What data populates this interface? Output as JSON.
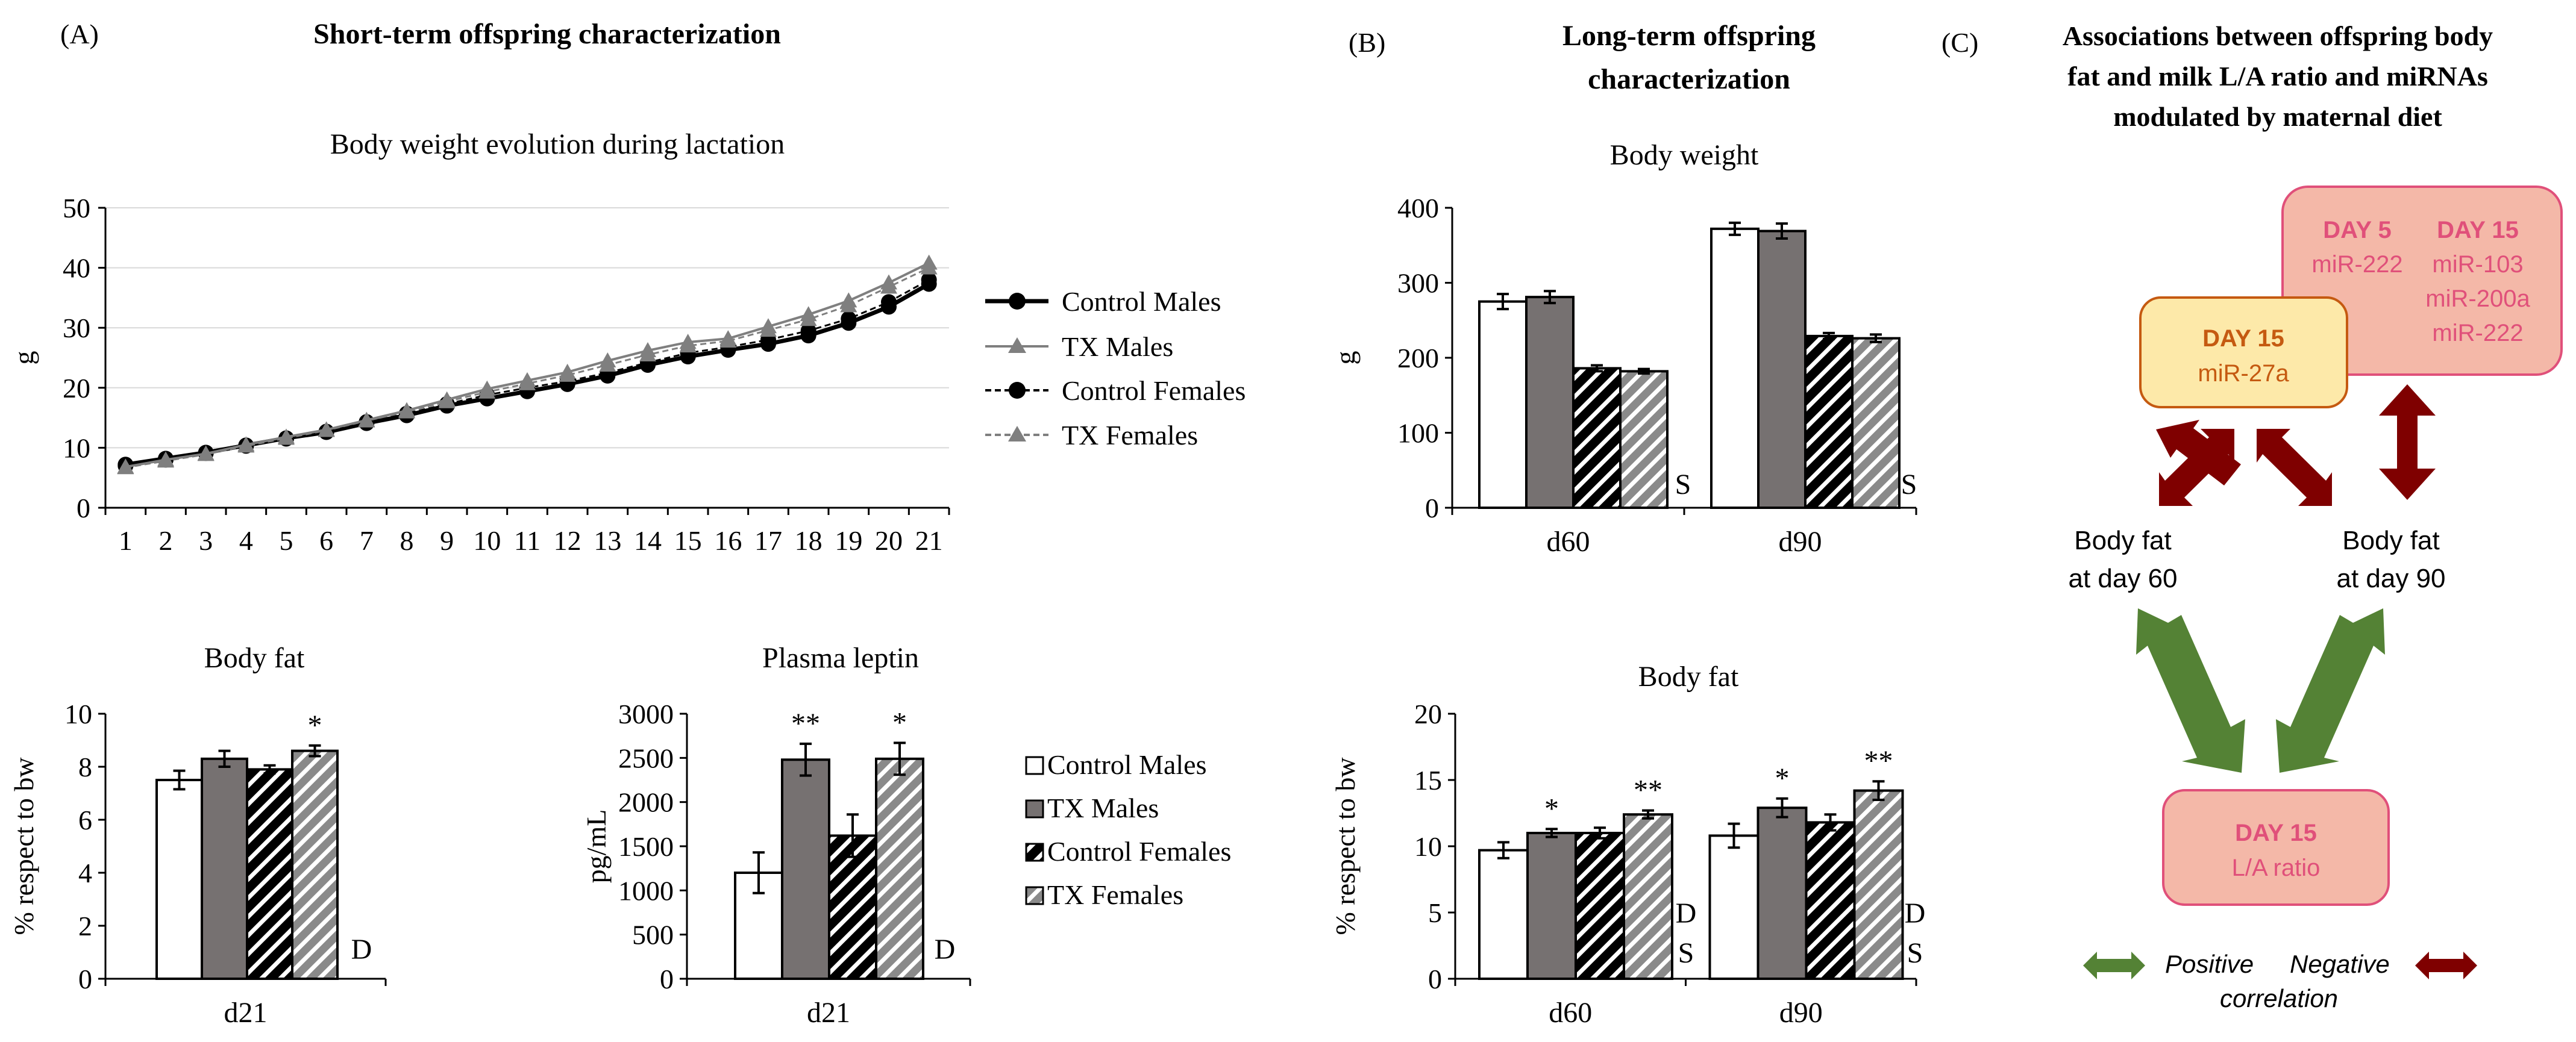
{
  "panels": {
    "A": {
      "label": "(A)",
      "title": "Short-term offspring characterization",
      "line_chart_title": "Body weight evolution during lactation",
      "body_fat_title": "Body fat",
      "leptin_title": "Plasma leptin",
      "diet_marker": "D"
    },
    "B": {
      "label": "(B)",
      "title_line1": "Long-term offspring",
      "title_line2": "characterization",
      "body_weight_title": "Body weight",
      "body_fat_title": "Body fat",
      "sex_marker": "S",
      "diet_marker": "D"
    },
    "C": {
      "label": "(C)",
      "title_line1": "Associations between offspring body",
      "title_line2": "fat and milk L/A ratio and miRNAs",
      "title_line3": "modulated by maternal diet",
      "box_day15_title": "DAY 15",
      "box_day15_mirna": "miR-27a",
      "box_day5_title": "DAY 5",
      "box_day5_mirna": "miR-222",
      "box_day15b_title": "DAY 15",
      "box_day15b_mirnas": [
        "miR-103",
        "miR-200a",
        "miR-222"
      ],
      "body_fat_60_line1": "Body fat",
      "body_fat_60_line2": "at day 60",
      "body_fat_90_line1": "Body fat",
      "body_fat_90_line2": "at day 90",
      "la_box_title": "DAY 15",
      "la_box_text": "L/A ratio",
      "legend_positive": "Positive",
      "legend_negative": "Negative",
      "legend_correlation": "correlation"
    }
  },
  "legend_lines": [
    "Control Males",
    "TX Males",
    "Control Females",
    "TX Females"
  ],
  "legend_bars": [
    "Control Males",
    "TX Males",
    "Control Females",
    "TX Females"
  ],
  "colors": {
    "grey_bar": "#767171",
    "grey_line": "#7f7f7f",
    "dark_red": "#7f0000",
    "green": "#548235",
    "yellow_box": "#fde9a9",
    "yellow_border": "#c55a11",
    "pink_box": "#f4b8a8",
    "pink_border": "#e0507a",
    "pink_text": "#e0507a",
    "orange_text": "#c55a11"
  },
  "chart_data": [
    {
      "id": "bw_lactation",
      "type": "line",
      "title": "Body weight evolution during lactation",
      "ylabel": "g",
      "xlabel": "",
      "ylim": [
        0,
        50
      ],
      "yticks": [
        0,
        10,
        20,
        30,
        40,
        50
      ],
      "x": [
        1,
        2,
        3,
        4,
        5,
        6,
        7,
        8,
        9,
        10,
        11,
        12,
        13,
        14,
        15,
        16,
        17,
        18,
        19,
        20,
        21
      ],
      "series": [
        {
          "name": "Control Males",
          "values": [
            7.2,
            8.2,
            9.2,
            10.4,
            11.6,
            12.6,
            14.1,
            15.4,
            17.0,
            18.2,
            19.4,
            20.6,
            22.0,
            23.8,
            25.2,
            26.3,
            27.3,
            28.7,
            30.8,
            33.5,
            37.3
          ]
        },
        {
          "name": "TX Males",
          "values": [
            6.8,
            8.0,
            9.0,
            10.5,
            11.8,
            13.0,
            14.6,
            16.2,
            18.0,
            19.8,
            21.2,
            22.6,
            24.5,
            26.2,
            27.6,
            28.2,
            30.2,
            32.2,
            34.5,
            37.5,
            40.8
          ]
        },
        {
          "name": "Control Females",
          "values": [
            7.0,
            8.0,
            9.1,
            10.3,
            11.5,
            12.7,
            14.3,
            15.7,
            17.3,
            18.8,
            20.0,
            21.1,
            22.5,
            24.2,
            25.8,
            26.8,
            28.0,
            29.5,
            31.5,
            34.3,
            38.0
          ]
        },
        {
          "name": "TX Females",
          "values": [
            6.7,
            7.8,
            8.9,
            10.3,
            11.6,
            12.9,
            14.5,
            16.0,
            17.7,
            19.3,
            20.7,
            22.1,
            23.8,
            25.5,
            27.0,
            27.8,
            29.6,
            31.4,
            33.7,
            36.8,
            40.0
          ]
        }
      ]
    },
    {
      "id": "body_fat_d21",
      "type": "bar",
      "title": "Body fat",
      "ylabel": "% respect to bw",
      "categories": [
        "d21"
      ],
      "ylim": [
        0,
        10
      ],
      "yticks": [
        0,
        2,
        4,
        6,
        8,
        10
      ],
      "series": [
        {
          "name": "Control Males",
          "values": [
            7.5
          ],
          "errors": [
            0.35
          ]
        },
        {
          "name": "TX Males",
          "values": [
            8.3
          ],
          "errors": [
            0.3
          ]
        },
        {
          "name": "Control Females",
          "values": [
            7.9
          ],
          "errors": [
            0.15
          ]
        },
        {
          "name": "TX Females",
          "values": [
            8.6
          ],
          "errors": [
            0.2
          ]
        }
      ],
      "significance": [
        {
          "series": "TX Females",
          "category": "d21",
          "label": "*"
        }
      ],
      "effect_labels": [
        "D"
      ]
    },
    {
      "id": "leptin_d21",
      "type": "bar",
      "title": "Plasma leptin",
      "ylabel": "pg/mL",
      "categories": [
        "d21"
      ],
      "ylim": [
        0,
        3000
      ],
      "yticks": [
        0,
        500,
        1000,
        1500,
        2000,
        2500,
        3000
      ],
      "series": [
        {
          "name": "Control Males",
          "values": [
            1200
          ],
          "errors": [
            230
          ]
        },
        {
          "name": "TX Males",
          "values": [
            2480
          ],
          "errors": [
            180
          ]
        },
        {
          "name": "Control Females",
          "values": [
            1620
          ],
          "errors": [
            240
          ]
        },
        {
          "name": "TX Females",
          "values": [
            2490
          ],
          "errors": [
            180
          ]
        }
      ],
      "significance": [
        {
          "series": "TX Males",
          "category": "d21",
          "label": "**"
        },
        {
          "series": "TX Females",
          "category": "d21",
          "label": "*"
        }
      ],
      "effect_labels": [
        "D"
      ]
    },
    {
      "id": "bw_long",
      "type": "bar",
      "title": "Body weight",
      "ylabel": "g",
      "categories": [
        "d60",
        "d90"
      ],
      "ylim": [
        0,
        400
      ],
      "yticks": [
        0,
        100,
        200,
        300,
        400
      ],
      "series": [
        {
          "name": "Control Males",
          "values": [
            275,
            372
          ],
          "errors": [
            10,
            8
          ]
        },
        {
          "name": "TX Males",
          "values": [
            281,
            369
          ],
          "errors": [
            8,
            10
          ]
        },
        {
          "name": "Control Females",
          "values": [
            186,
            229
          ],
          "errors": [
            4,
            4
          ]
        },
        {
          "name": "TX Females",
          "values": [
            182,
            226
          ],
          "errors": [
            3,
            5
          ]
        }
      ],
      "significance": [],
      "effect_labels": [
        "S"
      ]
    },
    {
      "id": "bf_long",
      "type": "bar",
      "title": "Body fat",
      "ylabel": "% respect to bw",
      "categories": [
        "d60",
        "d90"
      ],
      "ylim": [
        0,
        20
      ],
      "yticks": [
        0,
        5,
        10,
        15,
        20
      ],
      "series": [
        {
          "name": "Control Males",
          "values": [
            9.7,
            10.8
          ],
          "errors": [
            0.6,
            0.9
          ]
        },
        {
          "name": "TX Males",
          "values": [
            11.0,
            12.9
          ],
          "errors": [
            0.3,
            0.7
          ]
        },
        {
          "name": "Control Females",
          "values": [
            11.0,
            11.8
          ],
          "errors": [
            0.4,
            0.6
          ]
        },
        {
          "name": "TX Females",
          "values": [
            12.4,
            14.2
          ],
          "errors": [
            0.3,
            0.7
          ]
        }
      ],
      "significance": [
        {
          "series": "TX Males",
          "category": "d60",
          "label": "*"
        },
        {
          "series": "TX Females",
          "category": "d60",
          "label": "**"
        },
        {
          "series": "TX Males",
          "category": "d90",
          "label": "*"
        },
        {
          "series": "TX Females",
          "category": "d90",
          "label": "**"
        }
      ],
      "effect_labels": [
        "D",
        "S"
      ]
    }
  ]
}
